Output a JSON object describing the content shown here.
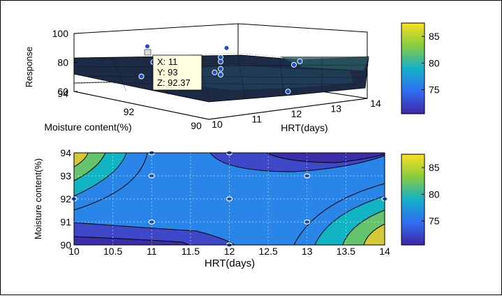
{
  "chart_data": [
    {
      "type": "surface",
      "title": "",
      "xlabel": "HRT(days)",
      "ylabel": "Moisture content(%)",
      "zlabel": "Response",
      "xlim": [
        10,
        14
      ],
      "ylim": [
        90,
        94
      ],
      "zlim": [
        60,
        100
      ],
      "x_ticks": [
        "10",
        "11",
        "12",
        "13",
        "14"
      ],
      "y_ticks": [
        "90",
        "92",
        "94"
      ],
      "z_ticks": [
        "60",
        "80",
        "100"
      ],
      "points": [
        {
          "x": 10,
          "y": 92,
          "z": 80
        },
        {
          "x": 11,
          "y": 91,
          "z": 84
        },
        {
          "x": 11,
          "y": 93,
          "z": 92.37
        },
        {
          "x": 12,
          "y": 90,
          "z": 72
        },
        {
          "x": 12,
          "y": 92,
          "z": 74
        },
        {
          "x": 12,
          "y": 92,
          "z": 78
        },
        {
          "x": 12,
          "y": 92,
          "z": 83
        },
        {
          "x": 12,
          "y": 92,
          "z": 86
        },
        {
          "x": 12,
          "y": 94,
          "z": 73
        },
        {
          "x": 13,
          "y": 91,
          "z": 82
        },
        {
          "x": 13,
          "y": 93,
          "z": 84
        },
        {
          "x": 14,
          "y": 92,
          "z": 76
        }
      ],
      "datatip": {
        "x_label": "X: 11",
        "y_label": "Y: 93",
        "z_label": "Z: 92.37"
      },
      "colorbar": {
        "ticks": [
          "75",
          "80",
          "85"
        ],
        "range": [
          70.5,
          87.5
        ],
        "colormap": "parula"
      }
    },
    {
      "type": "contour",
      "title": "",
      "xlabel": "HRT(days)",
      "ylabel": "Moisture content(%)",
      "xlim": [
        10,
        14
      ],
      "ylim": [
        90,
        94
      ],
      "x_ticks": [
        "10",
        "10.5",
        "11",
        "11.5",
        "12",
        "12.5",
        "13",
        "13.5",
        "14"
      ],
      "y_ticks": [
        "90",
        "91",
        "92",
        "93",
        "94"
      ],
      "grid": true,
      "points": [
        {
          "x": 10,
          "y": 92
        },
        {
          "x": 11,
          "y": 94
        },
        {
          "x": 11,
          "y": 93
        },
        {
          "x": 11,
          "y": 91
        },
        {
          "x": 12,
          "y": 94
        },
        {
          "x": 12,
          "y": 92
        },
        {
          "x": 12,
          "y": 90
        },
        {
          "x": 13,
          "y": 93
        },
        {
          "x": 13,
          "y": 91
        },
        {
          "x": 14,
          "y": 92
        }
      ],
      "colorbar": {
        "ticks": [
          "75",
          "80",
          "85"
        ],
        "range": [
          70.5,
          87.5
        ],
        "colormap": "parula"
      }
    }
  ],
  "colors": {
    "low": "#3b35b5",
    "mid": "#14a5d0",
    "high": "#f4e11a",
    "marker": "#1f4ecc"
  }
}
